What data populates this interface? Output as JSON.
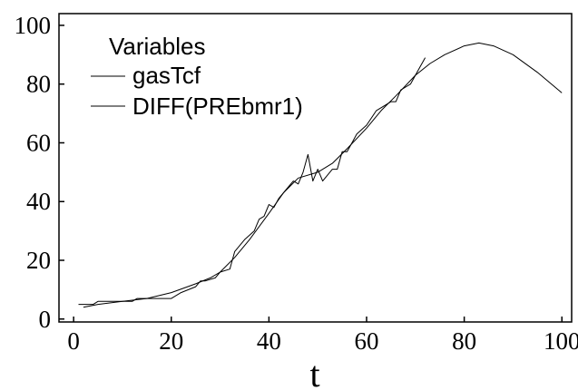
{
  "chart_data": {
    "type": "line",
    "title": "",
    "xlabel": "t",
    "ylabel": "",
    "xlim": [
      -3,
      102
    ],
    "ylim": [
      -1,
      104
    ],
    "xticks": [
      "0",
      "20",
      "40",
      "60",
      "80",
      "100"
    ],
    "yticks": [
      "0",
      "20",
      "40",
      "60",
      "80",
      "100"
    ],
    "grid": false,
    "legend": {
      "title": "Variables",
      "position": "top-left",
      "entries": [
        "gasTcf",
        "DIFF(PREbmr1)"
      ]
    },
    "series": [
      {
        "name": "gasTcf",
        "color": "#000000",
        "x": [
          2,
          5,
          10,
          15,
          20,
          25,
          28,
          30,
          33,
          36,
          40,
          43,
          46,
          50,
          53,
          56,
          60,
          63,
          66,
          70,
          73,
          76,
          80,
          83,
          86,
          90,
          95,
          100
        ],
        "y": [
          4,
          5,
          6,
          7,
          9,
          12,
          14,
          16,
          21,
          27,
          36,
          43,
          48,
          50,
          53,
          58,
          65,
          71,
          76,
          83,
          87,
          90,
          93,
          94,
          93,
          90,
          84,
          77
        ]
      },
      {
        "name": "DIFF(PREbmr1)",
        "color": "#000000",
        "x": [
          1,
          4,
          5,
          8,
          12,
          13,
          15,
          18,
          20,
          22,
          25,
          26,
          27,
          29,
          30,
          32,
          33,
          35,
          37,
          38,
          39,
          40,
          41,
          42,
          44,
          45,
          46,
          47,
          48,
          49,
          50,
          51,
          53,
          54,
          55,
          56,
          57,
          58,
          60,
          62,
          64,
          65,
          66,
          67,
          68,
          69,
          70,
          71,
          72
        ],
        "y": [
          5,
          5,
          6,
          6,
          6,
          7,
          7,
          7,
          7,
          9,
          11,
          13,
          13,
          14,
          16,
          17,
          23,
          27,
          30,
          34,
          35,
          39,
          38,
          41,
          45,
          47,
          46,
          50,
          56,
          47,
          51,
          47,
          51,
          51,
          57,
          57,
          60,
          63,
          66,
          71,
          73,
          74,
          74,
          78,
          79,
          80,
          83,
          86,
          89
        ]
      }
    ]
  }
}
